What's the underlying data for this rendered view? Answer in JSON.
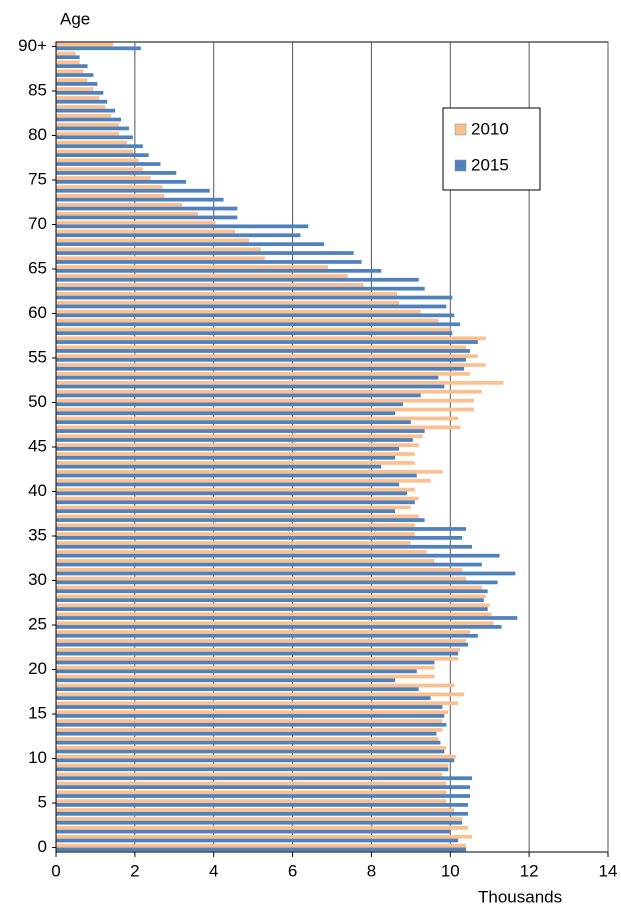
{
  "chart_data": {
    "type": "bar",
    "orientation": "horizontal",
    "y_axis_label": "Age",
    "x_axis_label": "Thousands",
    "categories": [
      "0",
      null,
      null,
      null,
      null,
      "5",
      null,
      null,
      null,
      null,
      "10",
      null,
      null,
      null,
      null,
      "15",
      null,
      null,
      null,
      null,
      "20",
      null,
      null,
      null,
      null,
      "25",
      null,
      null,
      null,
      null,
      "30",
      null,
      null,
      null,
      null,
      "35",
      null,
      null,
      null,
      null,
      "40",
      null,
      null,
      null,
      null,
      "45",
      null,
      null,
      null,
      null,
      "50",
      null,
      null,
      null,
      null,
      "55",
      null,
      null,
      null,
      null,
      "60",
      null,
      null,
      null,
      null,
      "65",
      null,
      null,
      null,
      null,
      "70",
      null,
      null,
      null,
      null,
      "75",
      null,
      null,
      null,
      null,
      "80",
      null,
      null,
      null,
      null,
      "85",
      null,
      null,
      null,
      null,
      "90+"
    ],
    "series": [
      {
        "name": "2010",
        "color": "#fac090",
        "values": [
          10.4,
          10.55,
          10.45,
          10.3,
          10.1,
          9.9,
          9.9,
          9.9,
          9.8,
          9.95,
          10.15,
          9.9,
          9.7,
          9.8,
          9.8,
          9.95,
          10.2,
          10.35,
          10.1,
          9.6,
          9.6,
          10.2,
          10.25,
          10.4,
          10.5,
          11.1,
          11.05,
          11.0,
          10.9,
          10.8,
          10.4,
          10.3,
          9.6,
          9.4,
          9.0,
          9.1,
          9.1,
          9.2,
          9.0,
          9.2,
          9.1,
          9.5,
          9.8,
          9.1,
          9.1,
          9.2,
          9.3,
          10.25,
          10.2,
          10.6,
          10.6,
          10.8,
          11.35,
          10.5,
          10.9,
          10.7,
          10.4,
          10.9,
          10.0,
          9.7,
          9.25,
          8.7,
          8.65,
          7.8,
          7.4,
          6.9,
          5.3,
          5.2,
          4.9,
          4.55,
          4.05,
          3.6,
          3.2,
          2.75,
          2.7,
          2.4,
          2.2,
          2.1,
          1.95,
          1.8,
          1.6,
          1.6,
          1.4,
          1.25,
          1.1,
          0.95,
          0.8,
          0.7,
          0.6,
          0.5,
          1.45
        ]
      },
      {
        "name": "2015",
        "color": "#4f81bd",
        "values": [
          10.4,
          10.2,
          10.0,
          10.3,
          10.45,
          10.45,
          10.5,
          10.5,
          10.55,
          9.95,
          10.1,
          9.85,
          9.75,
          9.65,
          9.9,
          9.85,
          9.8,
          9.5,
          9.2,
          8.6,
          9.15,
          9.6,
          10.2,
          10.45,
          10.7,
          11.3,
          11.7,
          10.95,
          10.85,
          10.95,
          11.2,
          11.65,
          10.8,
          11.25,
          10.55,
          10.3,
          10.4,
          9.35,
          8.6,
          9.1,
          8.9,
          8.7,
          9.15,
          8.25,
          8.6,
          8.7,
          9.05,
          9.35,
          9.0,
          8.6,
          8.8,
          9.25,
          9.85,
          9.7,
          10.35,
          10.4,
          10.5,
          10.7,
          10.05,
          10.25,
          10.1,
          9.9,
          10.05,
          9.35,
          9.2,
          8.25,
          7.75,
          7.55,
          6.8,
          6.2,
          6.4,
          4.6,
          4.6,
          4.25,
          3.9,
          3.3,
          3.05,
          2.65,
          2.35,
          2.2,
          1.95,
          1.85,
          1.65,
          1.5,
          1.3,
          1.2,
          1.05,
          0.95,
          0.8,
          0.6,
          2.15
        ]
      }
    ],
    "xlim": [
      0,
      14
    ],
    "xticks": [
      0,
      2,
      4,
      6,
      8,
      10,
      12,
      14
    ],
    "grid": true,
    "legend": "upper right"
  }
}
